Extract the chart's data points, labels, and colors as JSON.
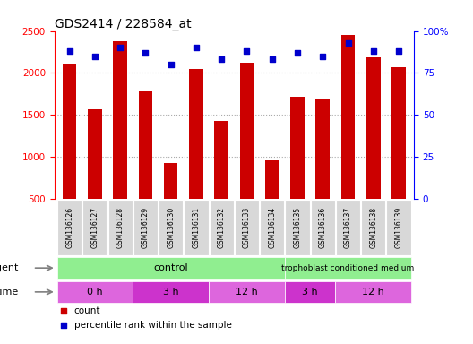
{
  "title": "GDS2414 / 228584_at",
  "samples": [
    "GSM136126",
    "GSM136127",
    "GSM136128",
    "GSM136129",
    "GSM136130",
    "GSM136131",
    "GSM136132",
    "GSM136133",
    "GSM136134",
    "GSM136135",
    "GSM136136",
    "GSM136137",
    "GSM136138",
    "GSM136139"
  ],
  "counts": [
    2100,
    1570,
    2380,
    1780,
    920,
    2050,
    1430,
    2120,
    960,
    1710,
    1680,
    2450,
    2180,
    2070
  ],
  "percentile_ranks": [
    88,
    85,
    90,
    87,
    80,
    90,
    83,
    88,
    83,
    87,
    85,
    93,
    88,
    88
  ],
  "bar_color": "#cc0000",
  "square_color": "#0000cc",
  "ylim_left": [
    500,
    2500
  ],
  "ylim_right": [
    0,
    100
  ],
  "yticks_left": [
    500,
    1000,
    1500,
    2000,
    2500
  ],
  "yticks_right": [
    0,
    25,
    50,
    75,
    100
  ],
  "agent_groups": [
    {
      "label": "control",
      "start": 0,
      "end": 9,
      "color": "#90ee90"
    },
    {
      "label": "trophoblast conditioned medium",
      "start": 9,
      "end": 14,
      "color": "#90ee90"
    }
  ],
  "time_groups": [
    {
      "label": "0 h",
      "start": 0,
      "end": 3
    },
    {
      "label": "3 h",
      "start": 3,
      "end": 6
    },
    {
      "label": "12 h",
      "start": 6,
      "end": 9
    },
    {
      "label": "3 h",
      "start": 9,
      "end": 11
    },
    {
      "label": "12 h",
      "start": 11,
      "end": 14
    }
  ],
  "time_colors": [
    "#dd66dd",
    "#cc33cc",
    "#dd66dd",
    "#cc33cc",
    "#dd66dd"
  ],
  "agent_label": "agent",
  "time_label": "time",
  "legend_count_label": "count",
  "legend_percentile_label": "percentile rank within the sample",
  "background_color": "#ffffff",
  "plot_bg_color": "#ffffff",
  "grid_color": "#aaaaaa",
  "tick_label_bg": "#d8d8d8"
}
